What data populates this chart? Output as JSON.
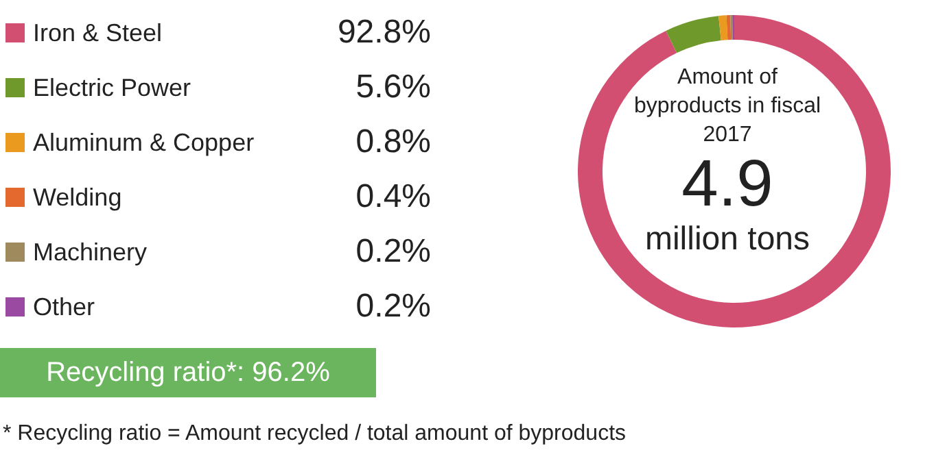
{
  "chart_data": {
    "type": "donut",
    "categories": [
      "Iron & Steel",
      "Electric Power",
      "Aluminum & Copper",
      "Welding",
      "Machinery",
      "Other"
    ],
    "values": [
      92.8,
      5.6,
      0.8,
      0.4,
      0.2,
      0.2
    ],
    "colors": [
      "#d24f72",
      "#6f9a2b",
      "#e99a1f",
      "#e3692e",
      "#9e8a5c",
      "#9a4aa0"
    ],
    "value_labels": [
      "92.8%",
      "5.6%",
      "0.8%",
      "0.4%",
      "0.2%",
      "0.2%"
    ],
    "legend": "left",
    "annotations": [
      "Amount of byproducts in fiscal 2017",
      "4.9",
      "million tons",
      "Recycling ratio*: 96.2%",
      "* Recycling ratio = Amount recycled / total amount of byproducts"
    ]
  }
}
